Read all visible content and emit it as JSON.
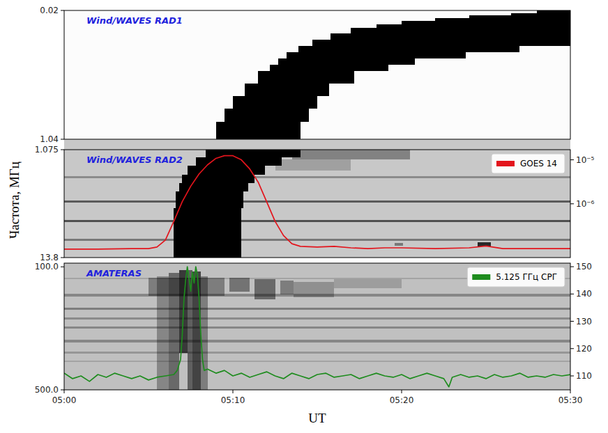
{
  "chart_data": [
    {
      "type": "spectrogram",
      "title": "Wind/WAVES RAD1",
      "xlim": [
        0,
        30
      ],
      "ylim": [
        1.04,
        0.02
      ],
      "yticks": [
        0.02,
        1.04
      ],
      "tick_labels": "y",
      "patches": [
        {
          "t": [
            28,
            30
          ],
          "f": [
            0.02,
            0.04
          ],
          "level": 1
        },
        {
          "t": [
            26.5,
            30
          ],
          "f": [
            0.04,
            0.06
          ],
          "level": 1
        },
        {
          "t": [
            24,
            30
          ],
          "f": [
            0.06,
            0.08
          ],
          "level": 1
        },
        {
          "t": [
            22,
            30
          ],
          "f": [
            0.08,
            0.1
          ],
          "level": 1
        },
        {
          "t": [
            20,
            30
          ],
          "f": [
            0.1,
            0.13
          ],
          "level": 1
        },
        {
          "t": [
            18.5,
            30
          ],
          "f": [
            0.13,
            0.16
          ],
          "level": 1
        },
        {
          "t": [
            17,
            30
          ],
          "f": [
            0.16,
            0.2
          ],
          "level": 1
        },
        {
          "t": [
            15.8,
            30
          ],
          "f": [
            0.2,
            0.25
          ],
          "level": 1
        },
        {
          "t": [
            14.7,
            30
          ],
          "f": [
            0.25,
            0.3
          ],
          "level": 1
        },
        {
          "t": [
            13.9,
            27
          ],
          "f": [
            0.3,
            0.35
          ],
          "level": 1
        },
        {
          "t": [
            13.2,
            23.8
          ],
          "f": [
            0.35,
            0.4
          ],
          "level": 1
        },
        {
          "t": [
            12.7,
            20.8
          ],
          "f": [
            0.4,
            0.45
          ],
          "level": 1
        },
        {
          "t": [
            12.2,
            19.2
          ],
          "f": [
            0.45,
            0.5
          ],
          "level": 1
        },
        {
          "t": [
            11.5,
            17.2
          ],
          "f": [
            0.5,
            0.6
          ],
          "level": 1
        },
        {
          "t": [
            10.7,
            15.7
          ],
          "f": [
            0.6,
            0.7
          ],
          "level": 1
        },
        {
          "t": [
            10.0,
            15.0
          ],
          "f": [
            0.7,
            0.8
          ],
          "level": 1
        },
        {
          "t": [
            9.5,
            14.5
          ],
          "f": [
            0.8,
            0.9
          ],
          "level": 1
        },
        {
          "t": [
            9.0,
            14.0
          ],
          "f": [
            0.9,
            1.04
          ],
          "level": 1
        }
      ]
    },
    {
      "type": "spectrogram",
      "title": "Wind/WAVES RAD2",
      "ylabel": "Частота, МГц",
      "xlim": [
        0,
        30
      ],
      "ylim": [
        13.8,
        1.075
      ],
      "yticks": [
        1.075,
        13.8
      ],
      "tick_labels": "y",
      "y2lim": [
        6e-08,
        1.7e-05
      ],
      "y2ticks": [
        {
          "value": 1e-05,
          "label": "10⁻⁵"
        },
        {
          "value": 1e-06,
          "label": "10⁻⁶"
        }
      ],
      "log": "y2",
      "legend": "upper right",
      "patches": [
        {
          "t": [
            0,
            30
          ],
          "f": [
            4.2,
            4.45
          ],
          "level": 0.3
        },
        {
          "t": [
            0,
            30
          ],
          "f": [
            7.1,
            7.35
          ],
          "level": 0.55
        },
        {
          "t": [
            0,
            30
          ],
          "f": [
            9.4,
            9.65
          ],
          "level": 0.6
        },
        {
          "t": [
            0,
            30
          ],
          "f": [
            11.6,
            11.85
          ],
          "level": 0.4
        },
        {
          "t": [
            13.5,
            20.5
          ],
          "f": [
            1.075,
            2.2
          ],
          "level": 0.35
        },
        {
          "t": [
            12.5,
            17
          ],
          "f": [
            2.2,
            3.5
          ],
          "level": 0.2
        },
        {
          "t": [
            24.5,
            25.3
          ],
          "f": [
            12.0,
            12.5
          ],
          "level": 0.8
        },
        {
          "t": [
            19.6,
            20.1
          ],
          "f": [
            12.1,
            12.4
          ],
          "level": 0.4
        },
        {
          "t": [
            8.4,
            14.0
          ],
          "f": [
            1.075,
            2.0
          ],
          "level": 1
        },
        {
          "t": [
            7.8,
            12.9
          ],
          "f": [
            2.0,
            3.0
          ],
          "level": 1
        },
        {
          "t": [
            7.3,
            11.9
          ],
          "f": [
            3.0,
            4.0
          ],
          "level": 1
        },
        {
          "t": [
            7.0,
            11.3
          ],
          "f": [
            4.0,
            5.0
          ],
          "level": 1
        },
        {
          "t": [
            6.8,
            10.9
          ],
          "f": [
            5.0,
            6.0
          ],
          "level": 1
        },
        {
          "t": [
            6.6,
            10.6
          ],
          "f": [
            6.0,
            8.0
          ],
          "level": 1
        },
        {
          "t": [
            6.5,
            10.5
          ],
          "f": [
            8.0,
            13.8
          ],
          "level": 1
        }
      ],
      "series": [
        {
          "name": "GOES 14",
          "color": "#e3141c",
          "axis": "y2",
          "type": "line",
          "x": [
            0,
            2,
            4,
            5,
            5.5,
            6,
            6.5,
            7,
            7.5,
            8,
            8.5,
            9,
            9.5,
            10,
            10.5,
            11,
            11.5,
            12,
            12.5,
            13,
            13.5,
            14,
            15,
            16,
            17,
            18,
            19,
            20,
            22,
            24,
            25,
            26,
            28,
            30
          ],
          "values": [
            9.3e-08,
            9.3e-08,
            9.6e-08,
            9.6e-08,
            1.04e-07,
            1.5e-07,
            4e-07,
            1.12e-06,
            2.5e-06,
            4.8e-06,
            7.7e-06,
            1.08e-05,
            1.24e-05,
            1.24e-05,
            1e-05,
            6.2e-06,
            3.1e-06,
            1.12e-06,
            4e-07,
            1.9e-07,
            1.24e-07,
            1.08e-07,
            1.04e-07,
            1.08e-07,
            1e-07,
            9.6e-08,
            1e-07,
            1e-07,
            9.6e-08,
            1e-07,
            1.1e-07,
            9.6e-08,
            9.6e-08,
            9.6e-08
          ]
        }
      ]
    },
    {
      "type": "spectrogram",
      "title": "AMATERAS",
      "xlabel": "UT",
      "xlim": [
        0,
        30
      ],
      "xticks": [
        {
          "value": 0,
          "label": "05:00"
        },
        {
          "value": 10,
          "label": "05:10"
        },
        {
          "value": 20,
          "label": "05:20"
        },
        {
          "value": 30,
          "label": "05:30"
        }
      ],
      "ylim": [
        500,
        88
      ],
      "yticks": [
        {
          "value": 100,
          "label": "100.0"
        },
        {
          "value": 500,
          "label": "500.0"
        }
      ],
      "y2lim": [
        104.9,
        151.3
      ],
      "y2ticks": [
        110,
        120,
        130,
        140,
        150
      ],
      "legend": "upper right",
      "patches": [
        {
          "t": [
            0,
            30
          ],
          "f": [
            135,
            139
          ],
          "level": 0.15
        },
        {
          "t": [
            0,
            30
          ],
          "f": [
            188,
            196
          ],
          "level": 0.3
        },
        {
          "t": [
            0,
            30
          ],
          "f": [
            232,
            240
          ],
          "level": 0.35
        },
        {
          "t": [
            0,
            30
          ],
          "f": [
            265,
            272
          ],
          "level": 0.28
        },
        {
          "t": [
            0,
            30
          ],
          "f": [
            294,
            301
          ],
          "level": 0.3
        },
        {
          "t": [
            0,
            30
          ],
          "f": [
            338,
            346
          ],
          "level": 0.3
        },
        {
          "t": [
            0,
            30
          ],
          "f": [
            376,
            383
          ],
          "level": 0.22
        },
        {
          "t": [
            0,
            30
          ],
          "f": [
            404,
            410
          ],
          "level": 0.15
        },
        {
          "t": [
            5.5,
            6.2
          ],
          "f": [
            130,
            500
          ],
          "level": 0.3
        },
        {
          "t": [
            6.2,
            6.8
          ],
          "f": [
            120,
            500
          ],
          "level": 0.45
        },
        {
          "t": [
            6.8,
            7.3
          ],
          "f": [
            110,
            380
          ],
          "level": 0.7
        },
        {
          "t": [
            7.3,
            7.6
          ],
          "f": [
            110,
            500
          ],
          "level": 0.5
        },
        {
          "t": [
            7.6,
            8.1
          ],
          "f": [
            115,
            500
          ],
          "level": 0.65
        },
        {
          "t": [
            8.1,
            8.5
          ],
          "f": [
            130,
            500
          ],
          "level": 0.35
        },
        {
          "t": [
            5.0,
            9.5
          ],
          "f": [
            135,
            195
          ],
          "level": 0.35
        },
        {
          "t": [
            9.8,
            11.0
          ],
          "f": [
            135,
            180
          ],
          "level": 0.4
        },
        {
          "t": [
            11.3,
            12.5
          ],
          "f": [
            140,
            205
          ],
          "level": 0.45
        },
        {
          "t": [
            12.8,
            13.6
          ],
          "f": [
            145,
            190
          ],
          "level": 0.35
        },
        {
          "t": [
            13.6,
            16.0
          ],
          "f": [
            150,
            200
          ],
          "level": 0.25
        },
        {
          "t": [
            16.0,
            20.0
          ],
          "f": [
            140,
            170
          ],
          "level": 0.18
        }
      ],
      "series": [
        {
          "name": "5.125 ГГц СРГ",
          "color": "#1e8c1e",
          "axis": "y2",
          "type": "line",
          "x": [
            0,
            0.5,
            1,
            1.5,
            2,
            2.5,
            3,
            3.5,
            4,
            4.5,
            5,
            5.5,
            6,
            6.5,
            6.7,
            6.9,
            7.0,
            7.1,
            7.2,
            7.3,
            7.4,
            7.5,
            7.6,
            7.7,
            7.8,
            7.9,
            8.0,
            8.1,
            8.2,
            8.3,
            8.5,
            9,
            9.5,
            10,
            10.5,
            11,
            11.5,
            12,
            12.5,
            13,
            13.5,
            14,
            14.5,
            15,
            15.5,
            16,
            16.5,
            17,
            17.5,
            18,
            18.5,
            19,
            19.5,
            20,
            20.5,
            21,
            21.5,
            22,
            22.5,
            22.8,
            23,
            23.5,
            24,
            24.5,
            25,
            25.5,
            26,
            26.5,
            27,
            27.5,
            28,
            28.5,
            29,
            29.5,
            30
          ],
          "values": [
            111,
            109,
            110,
            108,
            110.5,
            109.5,
            111,
            110,
            109,
            110,
            108.5,
            109.5,
            110,
            110.5,
            112,
            116,
            125,
            138,
            145,
            150,
            146,
            141,
            148,
            144,
            150,
            147,
            138,
            125,
            116,
            112,
            112.5,
            111,
            112,
            110,
            111,
            109.5,
            110.5,
            111.5,
            110,
            109,
            111,
            110,
            109,
            110.5,
            111,
            109.5,
            110,
            110.5,
            109,
            110,
            111,
            110,
            109.5,
            110.5,
            109,
            110,
            111,
            110,
            109,
            106,
            109.5,
            110.5,
            109.5,
            110,
            109,
            110.5,
            109.5,
            110,
            111,
            109.5,
            110,
            109.5,
            110.5,
            110,
            110.5
          ]
        }
      ]
    }
  ]
}
